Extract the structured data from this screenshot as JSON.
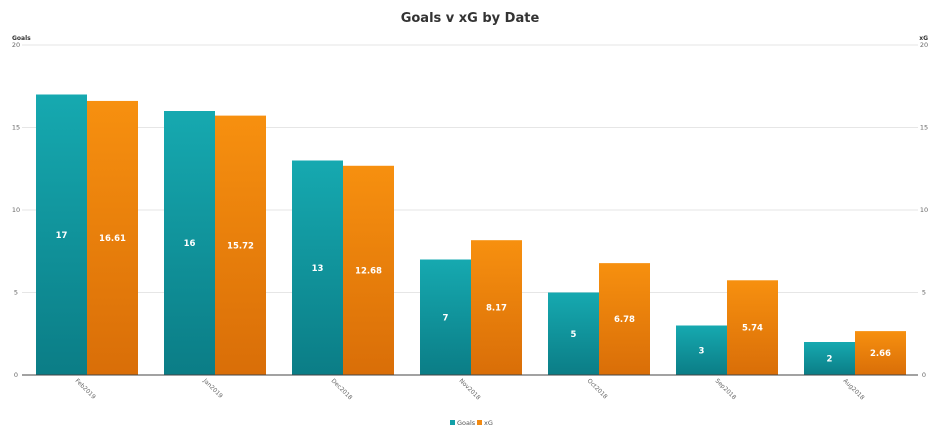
{
  "chart_data": {
    "type": "bar",
    "title": "Goals v xG by Date",
    "ylabel_left": "Goals",
    "ylabel_right": "xG",
    "ylim": [
      0,
      20
    ],
    "yticks": [
      "0",
      "5",
      "10",
      "15",
      "20"
    ],
    "grid": true,
    "legend_position": "bottom-center",
    "categories": [
      "Feb2019",
      "Jan2019",
      "Dec2018",
      "Nov2018",
      "Oct2018",
      "Sep2018",
      "Aug2018"
    ],
    "series": [
      {
        "name": "Goals",
        "color": "#12a0a8",
        "values": [
          17,
          16,
          13,
          7,
          5,
          3,
          2
        ],
        "labels": [
          "17",
          "16",
          "13",
          "7",
          "5",
          "3",
          "2"
        ]
      },
      {
        "name": "xG",
        "color": "#f28a12",
        "values": [
          16.61,
          15.72,
          12.68,
          8.17,
          6.78,
          5.74,
          2.66
        ],
        "labels": [
          "16.61",
          "15.72",
          "12.68",
          "8.17",
          "6.78",
          "5.74",
          "2.66"
        ]
      }
    ]
  }
}
